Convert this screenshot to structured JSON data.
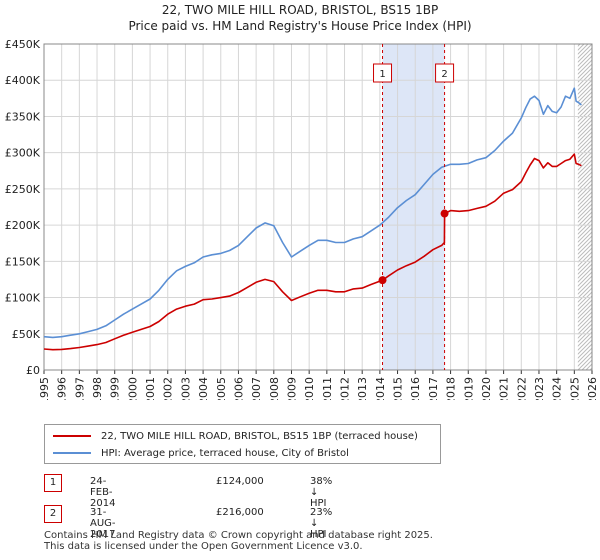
{
  "title_line1": "22, TWO MILE HILL ROAD, BRISTOL, BS15 1BP",
  "title_line2": "Price paid vs. HM Land Registry's House Price Index (HPI)",
  "colors": {
    "property": "#cc0000",
    "hpi": "#5b8fd4",
    "shade": "#dde6f7",
    "grid": "#d6d6d6"
  },
  "chart_data": {
    "type": "line",
    "xlim": [
      1995,
      2026
    ],
    "ylim": [
      0,
      450000
    ],
    "x_ticks": [
      1995,
      1996,
      1997,
      1998,
      1999,
      2000,
      2001,
      2002,
      2003,
      2004,
      2005,
      2006,
      2007,
      2008,
      2009,
      2010,
      2011,
      2012,
      2013,
      2014,
      2015,
      2016,
      2017,
      2018,
      2019,
      2020,
      2021,
      2022,
      2023,
      2024,
      2025,
      2026
    ],
    "y_ticks": [
      {
        "value": 0,
        "label": "£0"
      },
      {
        "value": 50000,
        "label": "£50K"
      },
      {
        "value": 100000,
        "label": "£100K"
      },
      {
        "value": 150000,
        "label": "£150K"
      },
      {
        "value": 200000,
        "label": "£200K"
      },
      {
        "value": 250000,
        "label": "£250K"
      },
      {
        "value": 300000,
        "label": "£300K"
      },
      {
        "value": 350000,
        "label": "£350K"
      },
      {
        "value": 400000,
        "label": "£400K"
      },
      {
        "value": 450000,
        "label": "£450K"
      }
    ],
    "shaded_range": [
      2014.15,
      2017.66
    ],
    "hatched_from": 2025.2,
    "series": [
      {
        "name": "22, TWO MILE HILL ROAD, BRISTOL, BS15 1BP (terraced house)",
        "color": "#cc0000",
        "x": [
          1995,
          1995.5,
          1996,
          1996.5,
          1997,
          1997.5,
          1998,
          1998.5,
          1999,
          1999.5,
          2000,
          2000.5,
          2001,
          2001.5,
          2002,
          2002.5,
          2003,
          2003.5,
          2004,
          2004.5,
          2005,
          2005.5,
          2006,
          2006.5,
          2007,
          2007.5,
          2008,
          2008.5,
          2009,
          2009.5,
          2010,
          2010.5,
          2011,
          2011.5,
          2012,
          2012.5,
          2013,
          2013.5,
          2014.15,
          2014.5,
          2015,
          2015.5,
          2016,
          2016.5,
          2017,
          2017.5,
          2017.65,
          2017.66,
          2018,
          2018.5,
          2019,
          2019.5,
          2020,
          2020.5,
          2021,
          2021.5,
          2022,
          2022.25,
          2022.5,
          2022.75,
          2023,
          2023.25,
          2023.5,
          2023.75,
          2024,
          2024.25,
          2024.5,
          2024.75,
          2025,
          2025.1,
          2025.25,
          2025.4
        ],
        "values": [
          29000,
          28000,
          28500,
          29500,
          31000,
          33000,
          35000,
          38000,
          43000,
          48000,
          52000,
          56000,
          60000,
          67000,
          77000,
          84000,
          88000,
          91000,
          97000,
          98000,
          100000,
          102000,
          107000,
          114000,
          121000,
          125000,
          122000,
          108000,
          96000,
          101000,
          106000,
          110000,
          110000,
          108000,
          108000,
          112000,
          113000,
          118000,
          124000,
          130000,
          138000,
          144000,
          149000,
          157000,
          166000,
          172000,
          176000,
          216000,
          220000,
          219000,
          220000,
          223000,
          226000,
          233000,
          244000,
          249000,
          260000,
          272000,
          283000,
          292000,
          289000,
          279000,
          286000,
          281000,
          281000,
          285000,
          289000,
          291000,
          298000,
          285000,
          284000,
          282000
        ]
      },
      {
        "name": "HPI: Average price, terraced house, City of Bristol",
        "color": "#5b8fd4",
        "x": [
          1995,
          1995.5,
          1996,
          1996.5,
          1997,
          1997.5,
          1998,
          1998.5,
          1999,
          1999.5,
          2000,
          2000.5,
          2001,
          2001.5,
          2002,
          2002.5,
          2003,
          2003.5,
          2004,
          2004.5,
          2005,
          2005.5,
          2006,
          2006.5,
          2007,
          2007.5,
          2008,
          2008.5,
          2009,
          2009.5,
          2010,
          2010.5,
          2011,
          2011.5,
          2012,
          2012.5,
          2013,
          2013.5,
          2014,
          2014.5,
          2015,
          2015.5,
          2016,
          2016.5,
          2017,
          2017.5,
          2018,
          2018.5,
          2019,
          2019.5,
          2020,
          2020.5,
          2021,
          2021.5,
          2022,
          2022.25,
          2022.5,
          2022.75,
          2023,
          2023.25,
          2023.5,
          2023.75,
          2024,
          2024.25,
          2024.5,
          2024.75,
          2025,
          2025.1,
          2025.25,
          2025.4
        ],
        "values": [
          46000,
          45000,
          46000,
          48000,
          50000,
          53000,
          56000,
          61000,
          69000,
          77000,
          84000,
          91000,
          98000,
          110000,
          125000,
          137000,
          143000,
          148000,
          156000,
          159000,
          161000,
          165000,
          172000,
          184000,
          196000,
          203000,
          199000,
          176000,
          156000,
          164000,
          172000,
          179000,
          179000,
          176000,
          176000,
          181000,
          184000,
          192000,
          200000,
          211000,
          224000,
          234000,
          242000,
          256000,
          270000,
          280000,
          284000,
          284000,
          285000,
          290000,
          293000,
          303000,
          316000,
          327000,
          348000,
          362000,
          374000,
          378000,
          372000,
          353000,
          365000,
          357000,
          355000,
          363000,
          378000,
          375000,
          389000,
          371000,
          369000,
          366000
        ]
      }
    ],
    "annotations": [
      {
        "label": "1",
        "x": 2014.15,
        "value": 124000
      },
      {
        "label": "2",
        "x": 2017.66,
        "value": 216000
      }
    ]
  },
  "legend": {
    "property_label": "22, TWO MILE HILL ROAD, BRISTOL, BS15 1BP (terraced house)",
    "hpi_label": "HPI: Average price, terraced house, City of Bristol"
  },
  "transactions": [
    {
      "num": "1",
      "date": "24-FEB-2014",
      "price": "£124,000",
      "hpi": "38% ↓ HPI"
    },
    {
      "num": "2",
      "date": "31-AUG-2017",
      "price": "£216,000",
      "hpi": "23% ↓ HPI"
    }
  ],
  "footer_line1": "Contains HM Land Registry data © Crown copyright and database right 2025.",
  "footer_line2": "This data is licensed under the Open Government Licence v3.0."
}
